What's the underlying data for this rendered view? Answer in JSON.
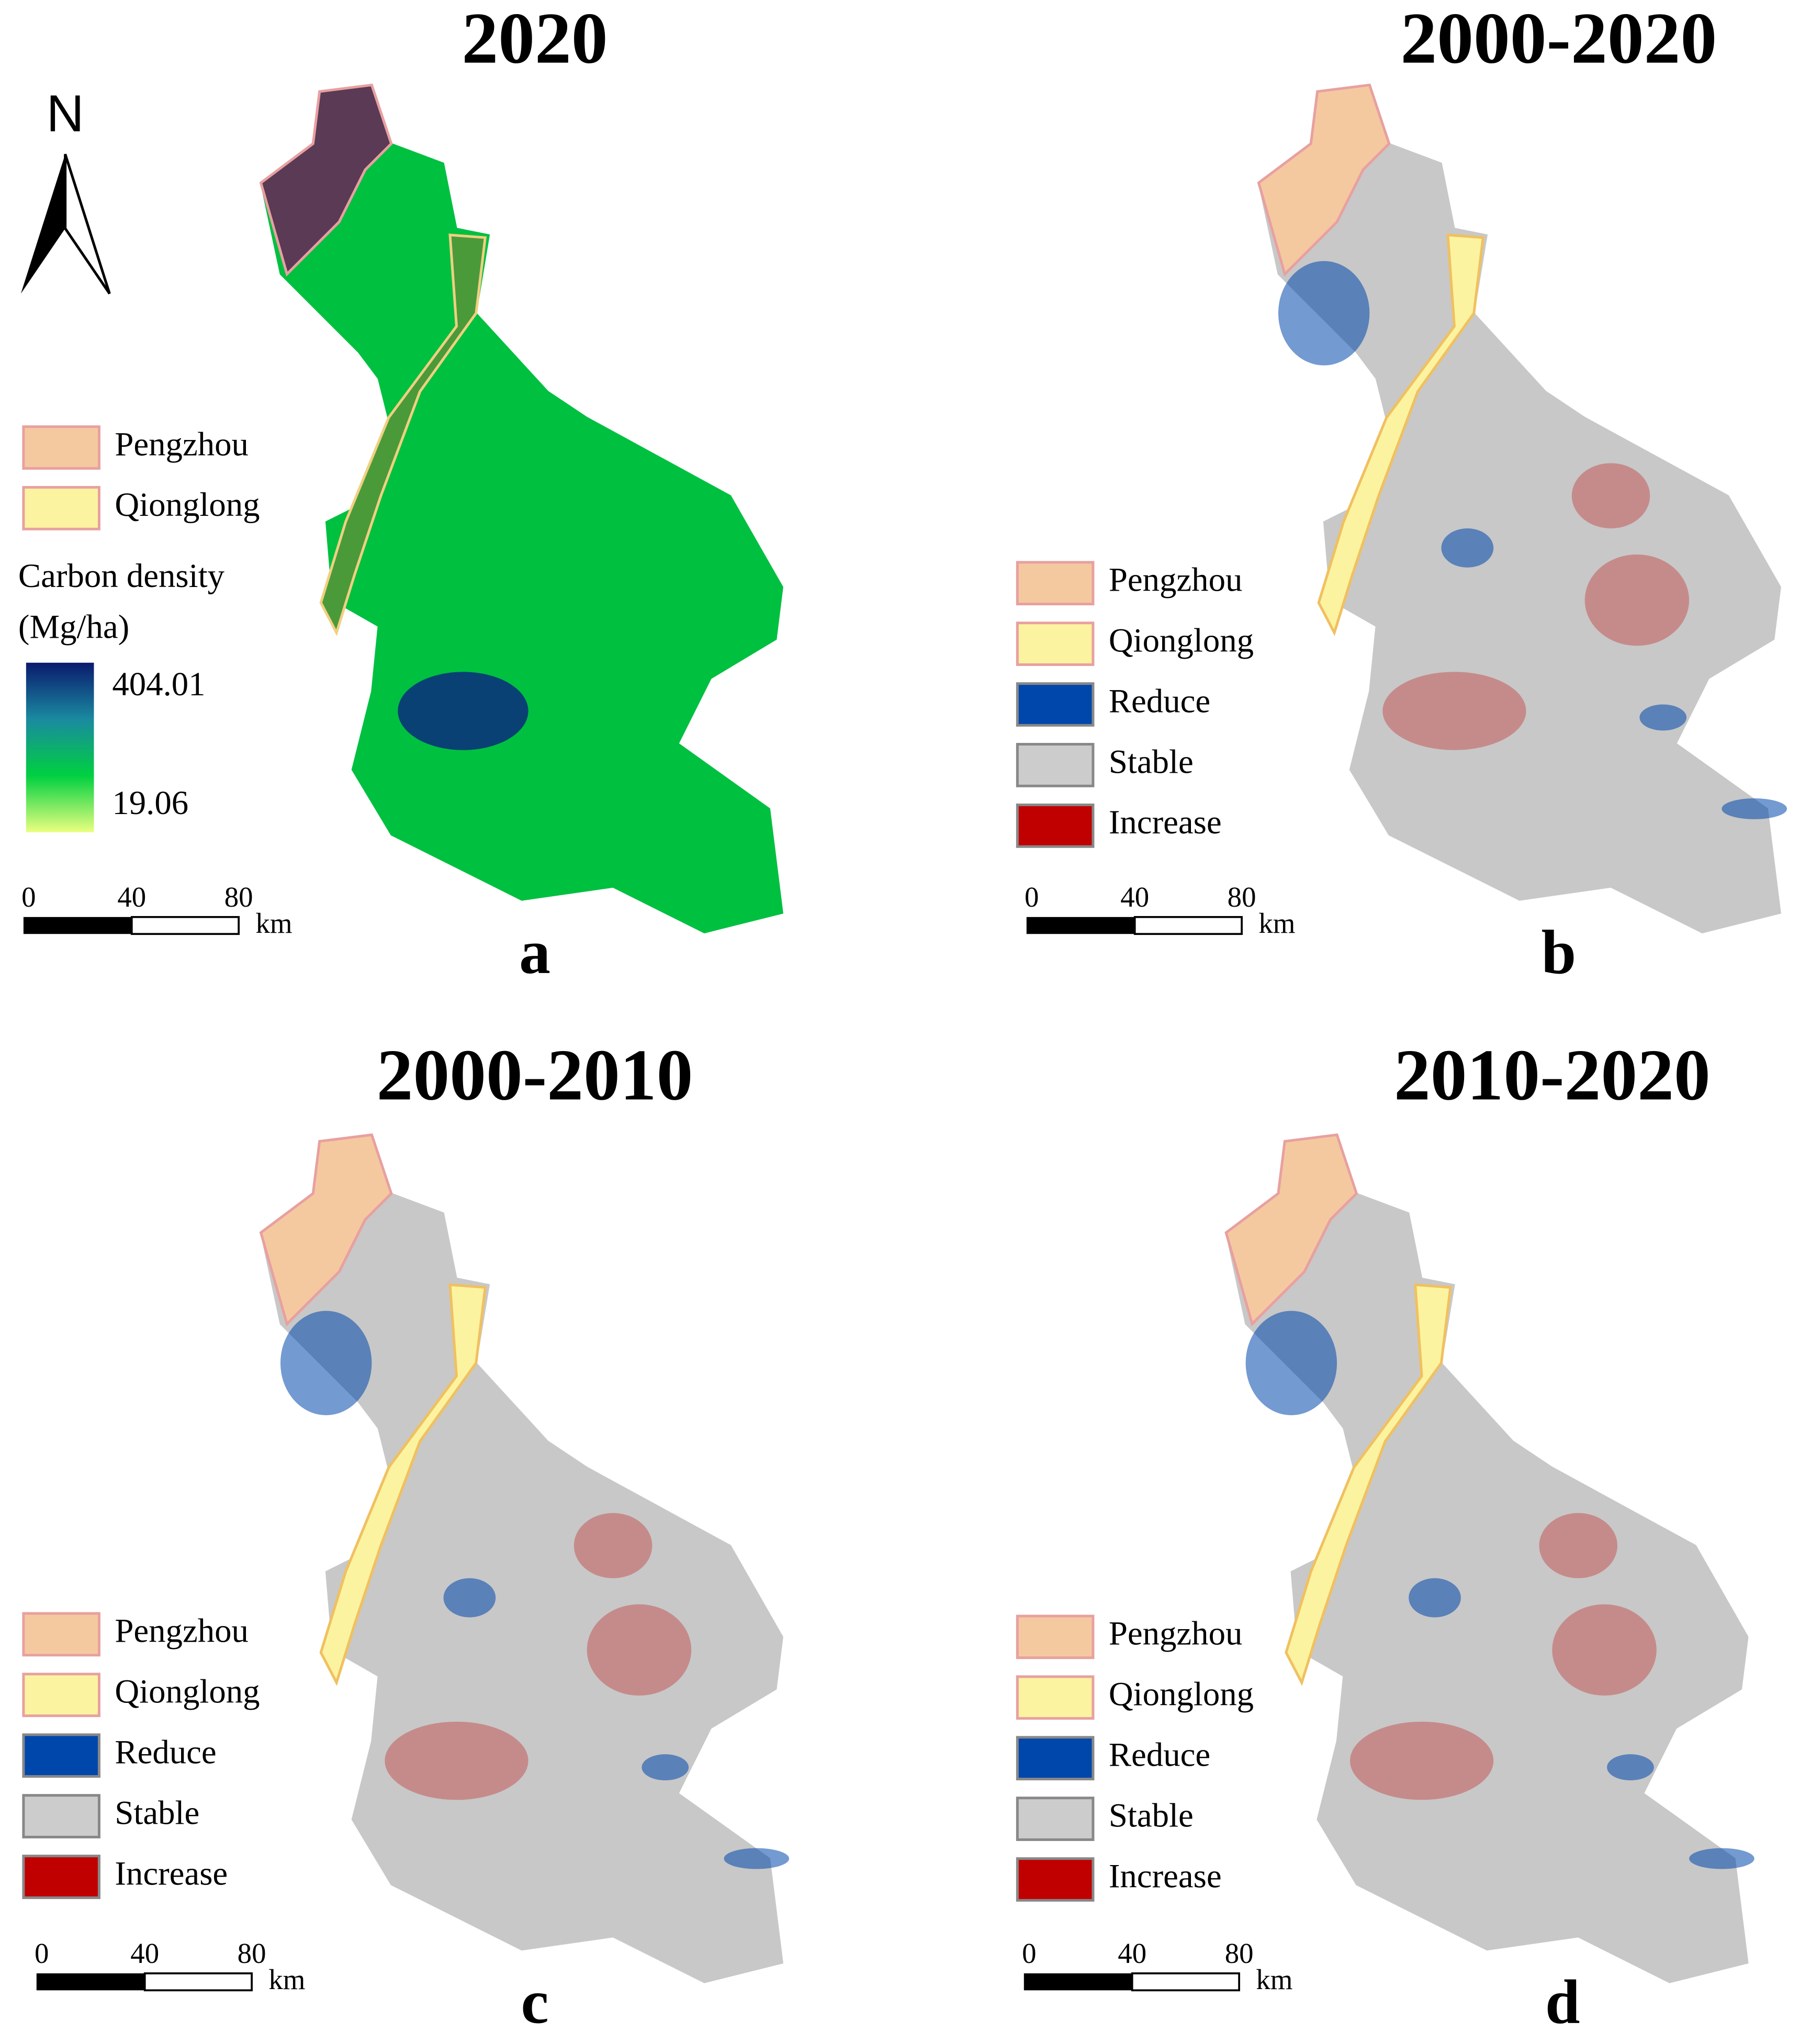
{
  "north": "N",
  "colorbar": {
    "title": "Carbon density",
    "unit": "(Mg/ha)",
    "max": 404.01,
    "min": 19.06,
    "colors": [
      "#0a1a6e",
      "#1a8aa0",
      "#00d040",
      "#eaff80"
    ]
  },
  "panels": [
    {
      "title": "2020",
      "label": "a",
      "map_color": "#00c040",
      "legend": [
        {
          "name": "Pengzhou",
          "color": "#f5c9a0"
        },
        {
          "name": "Qionglong",
          "color": "#fbf3a0"
        }
      ],
      "scale": [
        0,
        40,
        80
      ],
      "unit": "km"
    },
    {
      "title": "2000-2020",
      "label": "b",
      "map_color": "#c8c8c8",
      "legend": [
        {
          "name": "Pengzhou",
          "color": "#f5c9a0"
        },
        {
          "name": "Qionglong",
          "color": "#fbf3a0"
        },
        {
          "name": "Reduce",
          "color": "#0047ab"
        },
        {
          "name": "Stable",
          "color": "#cccccc"
        },
        {
          "name": "Increase",
          "color": "#c00000"
        }
      ],
      "scale": [
        0,
        40,
        80
      ],
      "unit": "km"
    },
    {
      "title": "2000-2010",
      "label": "c",
      "map_color": "#c8c8c8",
      "legend": [
        {
          "name": "Pengzhou",
          "color": "#f5c9a0"
        },
        {
          "name": "Qionglong",
          "color": "#fbf3a0"
        },
        {
          "name": "Reduce",
          "color": "#0047ab"
        },
        {
          "name": "Stable",
          "color": "#cccccc"
        },
        {
          "name": "Increase",
          "color": "#c00000"
        }
      ],
      "scale": [
        0,
        40,
        80
      ],
      "unit": "km"
    },
    {
      "title": "2010-2020",
      "label": "d",
      "map_color": "#c8c8c8",
      "legend": [
        {
          "name": "Pengzhou",
          "color": "#f5c9a0"
        },
        {
          "name": "Qionglong",
          "color": "#fbf3a0"
        },
        {
          "name": "Reduce",
          "color": "#0047ab"
        },
        {
          "name": "Stable",
          "color": "#cccccc"
        },
        {
          "name": "Increase",
          "color": "#c00000"
        }
      ],
      "scale": [
        0,
        40,
        80
      ],
      "unit": "km"
    }
  ]
}
